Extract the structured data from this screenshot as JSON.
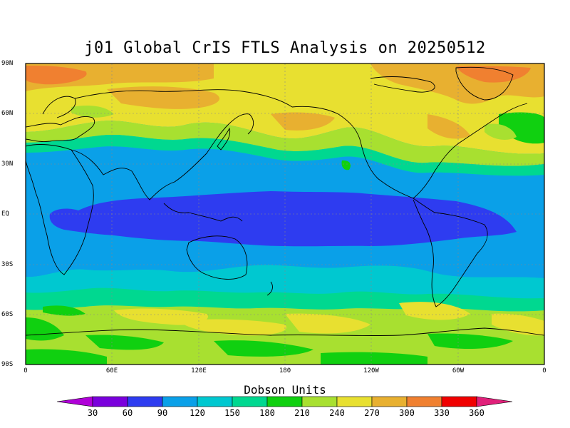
{
  "title": "j01 Global CrIS FTLS Analysis on 20250512",
  "latitude_labels": [
    "90N",
    "60N",
    "30N",
    "EQ",
    "30S",
    "60S",
    "90S"
  ],
  "longitude_labels": [
    "0",
    "60E",
    "120E",
    "180",
    "120W",
    "60W",
    "0"
  ],
  "colorbar": {
    "title": "Dobson Units",
    "labels": [
      "30",
      "60",
      "90",
      "120",
      "150",
      "180",
      "210",
      "240",
      "270",
      "300",
      "330",
      "360"
    ],
    "colors": [
      "#b000d8",
      "#7a00dc",
      "#2e3cf0",
      "#0aa0e8",
      "#00c8d0",
      "#00d890",
      "#10d010",
      "#a8e030",
      "#e8e030",
      "#e8b030",
      "#f08030",
      "#f00000",
      "#e0207a"
    ]
  }
}
